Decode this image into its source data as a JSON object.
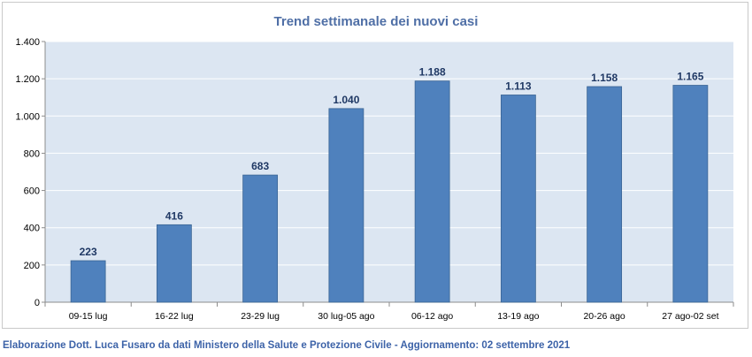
{
  "chart_data": {
    "type": "bar",
    "title": "Trend settimanale dei nuovi casi",
    "categories": [
      "09-15 lug",
      "16-22 lug",
      "23-29 lug",
      "30 lug-05 ago",
      "06-12 ago",
      "13-19 ago",
      "20-26 ago",
      "27 ago-02 set"
    ],
    "values": [
      223,
      416,
      683,
      1040,
      1188,
      1113,
      1158,
      1165
    ],
    "value_labels": [
      "223",
      "416",
      "683",
      "1.040",
      "1.188",
      "1.113",
      "1.158",
      "1.165"
    ],
    "ylim": [
      0,
      1400
    ],
    "yticks": [
      0,
      200,
      400,
      600,
      800,
      1000,
      1200,
      1400
    ],
    "ytick_labels": [
      "0",
      "200",
      "400",
      "600",
      "800",
      "1.000",
      "1.200",
      "1.400"
    ],
    "grid": true,
    "legend": "none",
    "colors": {
      "bar": "#4f81bd",
      "bar_border": "#3a6494",
      "plot_background": "#dce6f2",
      "gridline": "#ffffff",
      "title": "#4f6fa6",
      "label": "#1f3864"
    }
  },
  "footer": {
    "text": "Elaborazione Dott. Luca Fusaro da dati Ministero della Salute e Protezione Civile - Aggiornamento: 02 settembre 2021"
  }
}
